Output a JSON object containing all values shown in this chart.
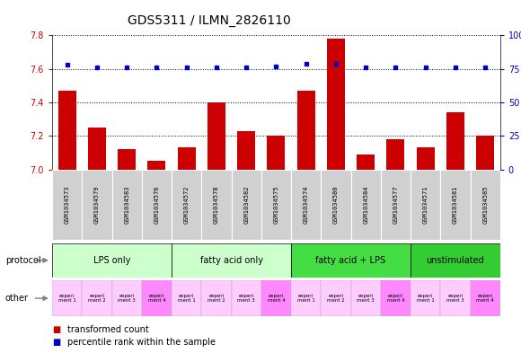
{
  "title": "GDS5311 / ILMN_2826110",
  "samples": [
    "GSM1034573",
    "GSM1034579",
    "GSM1034583",
    "GSM1034576",
    "GSM1034572",
    "GSM1034578",
    "GSM1034582",
    "GSM1034575",
    "GSM1034574",
    "GSM1034580",
    "GSM1034584",
    "GSM1034577",
    "GSM1034571",
    "GSM1034581",
    "GSM1034585"
  ],
  "transformed_count": [
    7.47,
    7.25,
    7.12,
    7.05,
    7.13,
    7.4,
    7.23,
    7.2,
    7.47,
    7.78,
    7.09,
    7.18,
    7.13,
    7.34,
    7.2
  ],
  "percentile_rank": [
    78,
    76,
    76,
    76,
    76,
    76,
    76,
    77,
    79,
    79,
    76,
    76,
    76,
    76,
    76
  ],
  "bar_color": "#cc0000",
  "dot_color": "#0000cc",
  "ylim_left": [
    7.0,
    7.8
  ],
  "ylim_right": [
    0,
    100
  ],
  "yticks_left": [
    7.0,
    7.2,
    7.4,
    7.6,
    7.8
  ],
  "yticks_right": [
    0,
    25,
    50,
    75,
    100
  ],
  "groups": [
    {
      "label": "LPS only",
      "start": 0,
      "end": 4,
      "color": "#ccffcc"
    },
    {
      "label": "fatty acid only",
      "start": 4,
      "end": 8,
      "color": "#ccffcc"
    },
    {
      "label": "fatty acid + LPS",
      "start": 8,
      "end": 12,
      "color": "#44dd44"
    },
    {
      "label": "unstimulated",
      "start": 12,
      "end": 15,
      "color": "#33cc33"
    }
  ],
  "experiments": [
    "experi\nment 1",
    "experi\nment 2",
    "experi\nment 3",
    "experi\nment 4",
    "experi\nment 1",
    "experi\nment 2",
    "experi\nment 3",
    "experi\nment 4",
    "experi\nment 1",
    "experi\nment 2",
    "experi\nment 3",
    "experi\nment 4",
    "experi\nment 1",
    "experi\nment 3",
    "experi\nment 4"
  ],
  "exp_colors": [
    "#ffccff",
    "#ffccff",
    "#ffccff",
    "#ff88ff",
    "#ffccff",
    "#ffccff",
    "#ffccff",
    "#ff88ff",
    "#ffccff",
    "#ffccff",
    "#ffccff",
    "#ff88ff",
    "#ffccff",
    "#ffccff",
    "#ff88ff"
  ],
  "sample_box_color": "#d0d0d0",
  "chart_bg": "#ffffff",
  "background_color": "#ffffff",
  "title_fontsize": 10,
  "tick_fontsize": 7,
  "sample_fontsize": 5,
  "group_fontsize": 7,
  "exp_fontsize": 4,
  "legend_fontsize": 7
}
